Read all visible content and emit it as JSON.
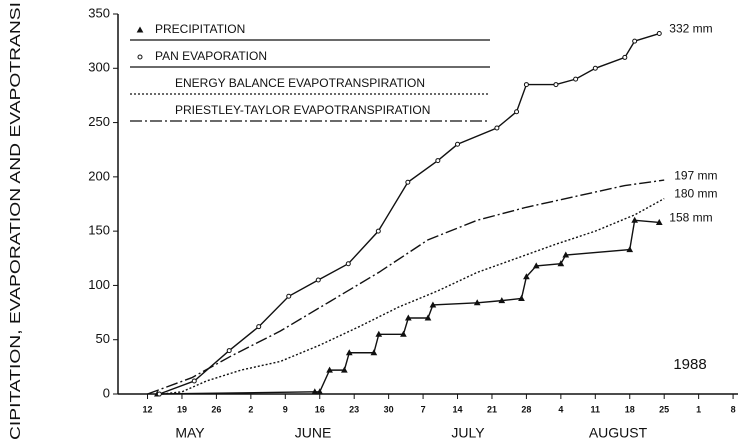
{
  "chart_data": {
    "type": "line",
    "y_label": "CIPITATION, EVAPORATION AND EVAPOTRANSI",
    "annotation": "1988",
    "month_labels": [
      "MAY",
      "JUNE",
      "JULY",
      "AUGUST"
    ],
    "xlim": [
      127,
      253
    ],
    "xticks": [
      {
        "value": 133,
        "label": "12"
      },
      {
        "value": 140,
        "label": "19"
      },
      {
        "value": 147,
        "label": "26"
      },
      {
        "value": 154,
        "label": "2"
      },
      {
        "value": 161,
        "label": "9"
      },
      {
        "value": 168,
        "label": "16"
      },
      {
        "value": 175,
        "label": "23"
      },
      {
        "value": 182,
        "label": "30"
      },
      {
        "value": 189,
        "label": "7"
      },
      {
        "value": 196,
        "label": "14"
      },
      {
        "value": 203,
        "label": "21"
      },
      {
        "value": 210,
        "label": "28"
      },
      {
        "value": 217,
        "label": "4"
      },
      {
        "value": 224,
        "label": "11"
      },
      {
        "value": 231,
        "label": "18"
      },
      {
        "value": 238,
        "label": "25"
      },
      {
        "value": 245,
        "label": "1"
      },
      {
        "value": 252,
        "label": "8"
      }
    ],
    "ylim": [
      0,
      350
    ],
    "yticks": [
      0,
      50,
      100,
      150,
      200,
      250,
      300,
      350
    ],
    "series": [
      {
        "name": "PRECIPITATION",
        "color": "#111",
        "marker": "triangle",
        "dash": "none",
        "end_label": "158 mm",
        "x": [
          135,
          167,
          168,
          170,
          173,
          174,
          179,
          180,
          185,
          186,
          190,
          191,
          200,
          205,
          209,
          210,
          212,
          217,
          218,
          231,
          232,
          237
        ],
        "values": [
          0,
          2,
          2,
          22,
          22,
          38,
          38,
          55,
          55,
          70,
          70,
          82,
          84,
          86,
          88,
          108,
          118,
          120,
          128,
          133,
          160,
          158
        ]
      },
      {
        "name": "PAN EVAPORATION",
        "color": "#111",
        "marker": "circle",
        "dash": "none",
        "end_label": "332 mm",
        "x": [
          135.4,
          142.5,
          149.6,
          155.6,
          161.7,
          167.7,
          173.8,
          179.9,
          185.9,
          192,
          196,
          204,
          208,
          210,
          216,
          220,
          224,
          230,
          232,
          237
        ],
        "values": [
          0,
          12,
          40,
          62,
          90,
          105,
          120,
          150,
          195,
          215,
          230,
          245,
          260,
          285,
          285,
          290,
          300,
          310,
          325,
          332
        ]
      },
      {
        "name": "ENERGY BALANCE EVAPOTRANSPIRATION",
        "color": "#111",
        "marker": "none",
        "dash": "2,2",
        "end_label": "180 mm",
        "x": [
          136,
          140,
          145,
          152,
          160,
          168,
          176,
          184,
          192,
          200,
          208,
          216,
          224,
          232,
          238
        ],
        "values": [
          0,
          2,
          12,
          22,
          30,
          45,
          62,
          80,
          95,
          112,
          125,
          138,
          150,
          165,
          180
        ]
      },
      {
        "name": "PRIESTLEY-TAYLOR EVAPOTRANSPIRATION",
        "color": "#111",
        "marker": "none",
        "dash": "12,3,2,3",
        "end_label": "197 mm",
        "x": [
          133,
          142,
          150,
          160,
          170,
          180,
          190,
          200,
          210,
          220,
          230,
          238
        ],
        "values": [
          0,
          15,
          35,
          58,
          85,
          112,
          142,
          160,
          172,
          182,
          192,
          197
        ]
      }
    ]
  }
}
